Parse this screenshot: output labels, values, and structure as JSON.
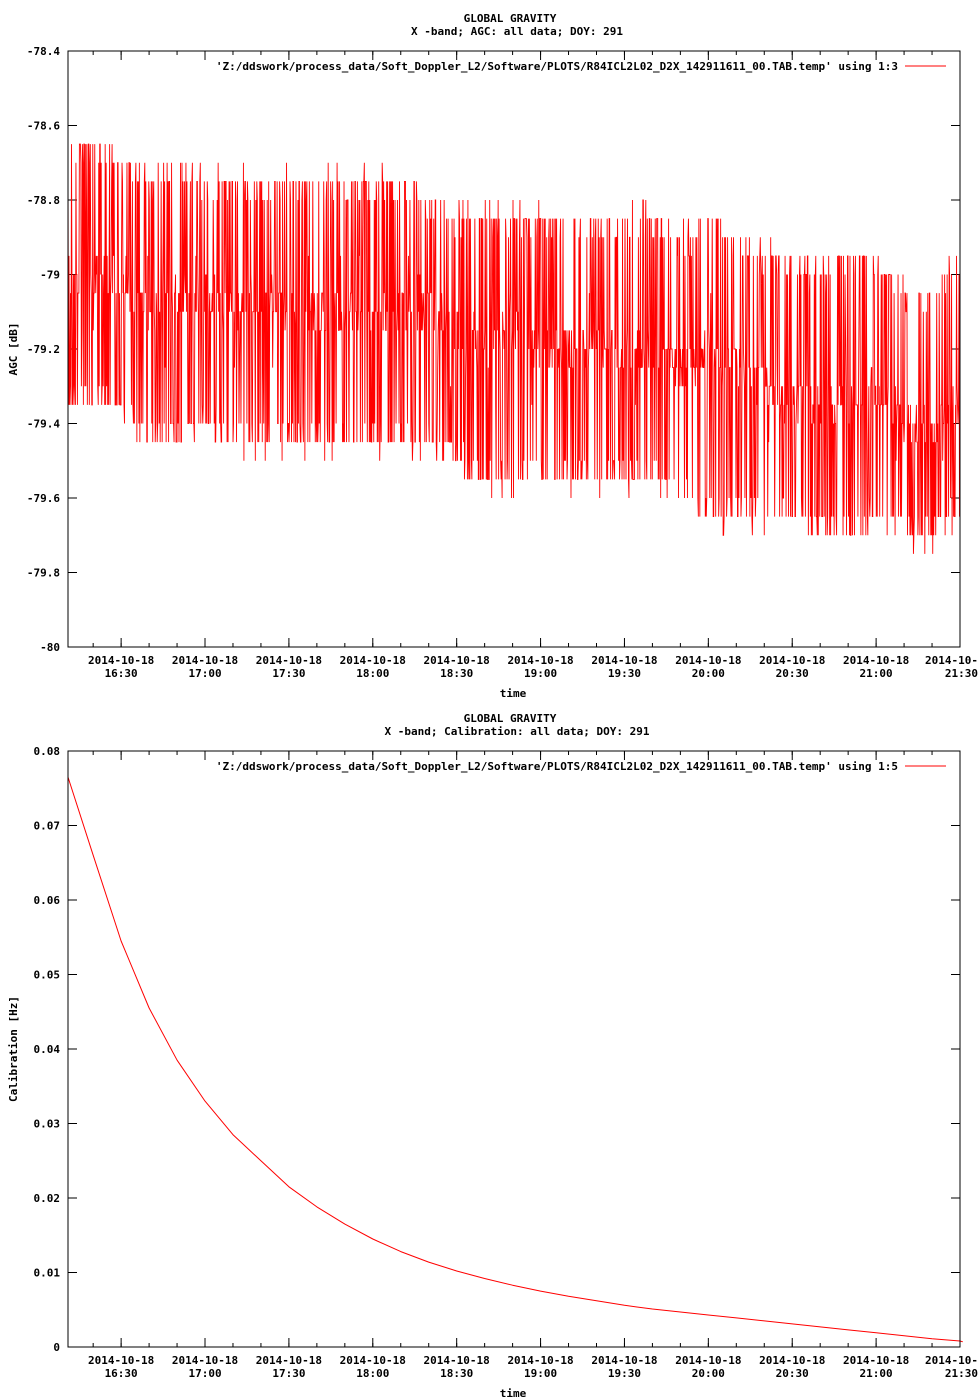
{
  "chart_data": [
    {
      "type": "line",
      "title": "GLOBAL GRAVITY",
      "subtitle": "X -band; AGC: all data; DOY: 291",
      "xlabel": "time",
      "ylabel": "AGC [dB]",
      "ylim": [
        -80,
        -78.4
      ],
      "y_ticks": [
        -78.4,
        -78.6,
        -78.8,
        -79,
        -79.2,
        -79.4,
        -79.6,
        -79.8,
        -80
      ],
      "y_tick_labels": [
        "-78.4",
        "-78.6",
        "-78.8",
        "-79",
        "-79.2",
        "-79.4",
        "-79.6",
        "-79.8",
        "-80"
      ],
      "x_tick_labels": [
        [
          "2014-10-18",
          "16:30"
        ],
        [
          "2014-10-18",
          "17:00"
        ],
        [
          "2014-10-18",
          "17:30"
        ],
        [
          "2014-10-18",
          "18:00"
        ],
        [
          "2014-10-18",
          "18:30"
        ],
        [
          "2014-10-18",
          "19:00"
        ],
        [
          "2014-10-18",
          "19:30"
        ],
        [
          "2014-10-18",
          "20:00"
        ],
        [
          "2014-10-18",
          "20:30"
        ],
        [
          "2014-10-18",
          "21:00"
        ],
        [
          "2014-10-",
          "21:30"
        ]
      ],
      "x": [
        "16:10",
        "16:20",
        "16:30",
        "16:40",
        "16:50",
        "17:00",
        "17:10",
        "17:20",
        "17:30",
        "17:40",
        "17:50",
        "18:00",
        "18:10",
        "18:20",
        "18:30",
        "18:40",
        "18:50",
        "19:00",
        "19:10",
        "19:20",
        "19:30",
        "19:40",
        "19:50",
        "20:00",
        "20:10",
        "20:20",
        "20:30",
        "20:40",
        "20:50",
        "21:00",
        "21:10",
        "21:20",
        "21:30"
      ],
      "grid": false,
      "legend": "top-right",
      "series": [
        {
          "name": "'Z:/ddswork/process_data/Soft_Doppler_L2/Software/PLOTS/R84ICL2L02_D2X_142911611_00.TAB.temp' using 1:3",
          "color": "#ff0000",
          "values": [
            -79.0,
            -79.0,
            -79.0,
            -79.1,
            -79.05,
            -79.05,
            -79.1,
            -79.05,
            -79.1,
            -79.1,
            -79.1,
            -79.1,
            -79.1,
            -79.1,
            -79.15,
            -79.2,
            -79.15,
            -79.2,
            -79.2,
            -79.2,
            -79.2,
            -79.2,
            -79.25,
            -79.2,
            -79.25,
            -79.3,
            -79.35,
            -79.35,
            -79.35,
            -79.3,
            -79.4,
            -79.4,
            -79.35
          ],
          "lower": [
            -79.3,
            -79.3,
            -79.3,
            -79.4,
            -79.4,
            -79.35,
            -79.4,
            -79.4,
            -79.4,
            -79.4,
            -79.4,
            -79.4,
            -79.4,
            -79.4,
            -79.45,
            -79.5,
            -79.5,
            -79.5,
            -79.5,
            -79.5,
            -79.5,
            -79.5,
            -79.55,
            -79.6,
            -79.6,
            -79.6,
            -79.6,
            -79.65,
            -79.65,
            -79.6,
            -79.65,
            -79.65,
            -79.6
          ],
          "upper": [
            -78.7,
            -78.7,
            -78.75,
            -78.8,
            -78.75,
            -78.8,
            -78.8,
            -78.8,
            -78.8,
            -78.8,
            -78.8,
            -78.8,
            -78.8,
            -78.85,
            -78.9,
            -78.9,
            -78.9,
            -78.9,
            -78.9,
            -78.9,
            -78.9,
            -78.9,
            -78.95,
            -78.9,
            -78.95,
            -79.0,
            -79.0,
            -79.05,
            -79.0,
            -79.0,
            -79.1,
            -79.1,
            -79.0
          ]
        }
      ]
    },
    {
      "type": "line",
      "title": "GLOBAL GRAVITY",
      "subtitle": "X -band; Calibration: all data; DOY: 291",
      "xlabel": "time",
      "ylabel": "Calibration [Hz]",
      "ylim": [
        0,
        0.08
      ],
      "y_ticks": [
        0,
        0.01,
        0.02,
        0.03,
        0.04,
        0.05,
        0.06,
        0.07,
        0.08
      ],
      "y_tick_labels": [
        "0",
        "0.01",
        "0.02",
        "0.03",
        "0.04",
        "0.05",
        "0.06",
        "0.07",
        "0.08"
      ],
      "x_tick_labels": [
        [
          "2014-10-18",
          "16:30"
        ],
        [
          "2014-10-18",
          "17:00"
        ],
        [
          "2014-10-18",
          "17:30"
        ],
        [
          "2014-10-18",
          "18:00"
        ],
        [
          "2014-10-18",
          "18:30"
        ],
        [
          "2014-10-18",
          "19:00"
        ],
        [
          "2014-10-18",
          "19:30"
        ],
        [
          "2014-10-18",
          "20:00"
        ],
        [
          "2014-10-18",
          "20:30"
        ],
        [
          "2014-10-18",
          "21:00"
        ],
        [
          "2014-10-",
          "21:30"
        ]
      ],
      "x": [
        "16:11",
        "16:20",
        "16:30",
        "16:40",
        "16:50",
        "17:00",
        "17:10",
        "17:20",
        "17:30",
        "17:40",
        "17:50",
        "18:00",
        "18:10",
        "18:20",
        "18:30",
        "18:40",
        "18:50",
        "19:00",
        "19:10",
        "19:20",
        "19:30",
        "19:40",
        "19:50",
        "20:00",
        "20:10",
        "20:20",
        "20:30",
        "20:40",
        "20:50",
        "21:00",
        "21:10",
        "21:20",
        "21:30",
        "21:31"
      ],
      "grid": false,
      "legend": "top-right",
      "series": [
        {
          "name": "'Z:/ddswork/process_data/Soft_Doppler_L2/Software/PLOTS/R84ICL2L02_D2X_142911611_00.TAB.temp' using 1:5",
          "color": "#ff0000",
          "values": [
            0.0765,
            0.066,
            0.0545,
            0.0455,
            0.0385,
            0.033,
            0.0285,
            0.025,
            0.0215,
            0.0188,
            0.0165,
            0.0145,
            0.0128,
            0.0114,
            0.0102,
            0.0092,
            0.0083,
            0.0075,
            0.0068,
            0.0062,
            0.0056,
            0.0051,
            0.0047,
            0.0043,
            0.0039,
            0.0035,
            0.0031,
            0.0027,
            0.0023,
            0.0019,
            0.0015,
            0.0011,
            0.0008,
            0.0007
          ]
        }
      ]
    }
  ]
}
